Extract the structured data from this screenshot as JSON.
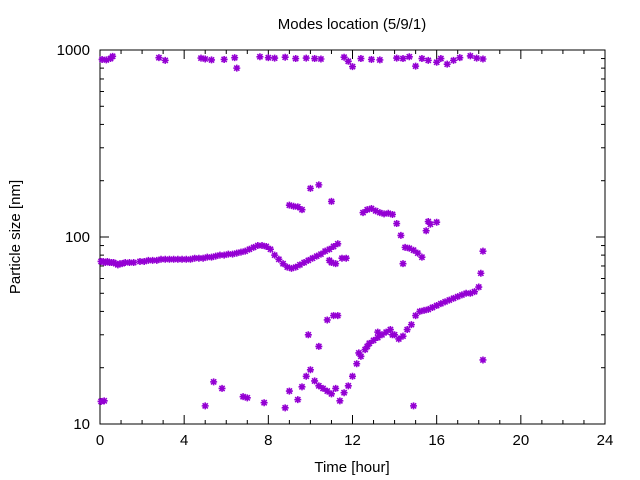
{
  "chart_data": {
    "type": "scatter",
    "title": "Modes location (5/9/1)",
    "xlabel": "Time [hour]",
    "ylabel": "Particle size [nm]",
    "xlim": [
      0,
      24
    ],
    "ylim": [
      10,
      1000
    ],
    "yscale": "log",
    "xticks": [
      0,
      4,
      8,
      12,
      16,
      20,
      24
    ],
    "yticks": [
      10,
      100,
      1000
    ],
    "ytick_labels": [
      "10",
      "100",
      "1000"
    ],
    "grid": false,
    "marker_color": "#9400d3",
    "series": [
      {
        "points": [
          [
            0.05,
            74
          ],
          [
            0.15,
            74
          ],
          [
            0.25,
            73
          ],
          [
            0.35,
            74
          ],
          [
            0.45,
            73
          ],
          [
            0.55,
            73
          ],
          [
            0.65,
            73
          ],
          [
            0.75,
            72
          ],
          [
            0.85,
            71
          ],
          [
            0.95,
            72
          ],
          [
            1.05,
            72
          ],
          [
            1.2,
            73
          ],
          [
            1.4,
            73
          ],
          [
            1.6,
            73
          ],
          [
            1.9,
            74
          ],
          [
            2.1,
            74
          ],
          [
            2.3,
            75
          ],
          [
            2.5,
            75
          ],
          [
            2.7,
            75
          ],
          [
            2.9,
            76
          ],
          [
            3.1,
            76
          ],
          [
            3.3,
            76
          ],
          [
            3.5,
            76
          ],
          [
            3.7,
            76
          ],
          [
            3.9,
            76
          ],
          [
            4.1,
            76
          ],
          [
            4.3,
            76
          ],
          [
            4.5,
            77
          ],
          [
            4.7,
            77
          ],
          [
            4.9,
            77
          ],
          [
            5.1,
            78
          ],
          [
            5.3,
            78
          ],
          [
            5.5,
            79
          ],
          [
            5.7,
            80
          ],
          [
            5.9,
            80
          ],
          [
            6.1,
            81
          ],
          [
            6.3,
            81
          ],
          [
            6.5,
            82
          ],
          [
            6.7,
            83
          ],
          [
            6.9,
            84
          ],
          [
            7.1,
            86
          ],
          [
            7.3,
            88
          ],
          [
            7.5,
            90
          ],
          [
            7.7,
            90
          ],
          [
            7.9,
            89
          ],
          [
            8.1,
            86
          ],
          [
            8.3,
            80
          ],
          [
            8.5,
            76
          ],
          [
            8.7,
            72
          ],
          [
            8.9,
            69
          ],
          [
            9.1,
            68
          ],
          [
            9.3,
            69
          ],
          [
            9.5,
            71
          ],
          [
            9.7,
            73
          ],
          [
            9.9,
            75
          ],
          [
            10.1,
            77
          ],
          [
            10.3,
            79
          ],
          [
            10.5,
            81
          ],
          [
            10.7,
            84
          ],
          [
            10.9,
            86
          ],
          [
            11.1,
            89
          ],
          [
            11.3,
            92
          ],
          [
            11.5,
            77
          ],
          [
            11.7,
            77
          ],
          [
            10.9,
            75
          ],
          [
            11.0,
            73
          ],
          [
            11.2,
            72
          ],
          [
            12.5,
            135
          ],
          [
            12.7,
            140
          ],
          [
            12.9,
            142
          ],
          [
            13.1,
            138
          ],
          [
            13.3,
            135
          ],
          [
            13.5,
            133
          ],
          [
            13.7,
            134
          ],
          [
            13.9,
            132
          ],
          [
            14.1,
            118
          ],
          [
            14.3,
            102
          ],
          [
            14.5,
            88
          ],
          [
            14.7,
            87
          ],
          [
            14.9,
            85
          ],
          [
            15.1,
            82
          ],
          [
            15.3,
            78
          ],
          [
            15.5,
            108
          ],
          [
            15.6,
            121
          ],
          [
            15.7,
            117
          ],
          [
            16.0,
            120
          ],
          [
            14.4,
            72
          ],
          [
            9.0,
            148
          ],
          [
            9.2,
            146
          ],
          [
            9.4,
            145
          ],
          [
            9.6,
            140
          ],
          [
            10.0,
            182
          ],
          [
            10.4,
            190
          ],
          [
            11.0,
            155
          ],
          [
            0.05,
            13.2
          ],
          [
            0.2,
            13.3
          ],
          [
            5.0,
            12.5
          ],
          [
            5.4,
            16.8
          ],
          [
            5.8,
            15.5
          ],
          [
            6.8,
            14
          ],
          [
            7.0,
            13.8
          ],
          [
            7.8,
            13
          ],
          [
            8.8,
            12.2
          ],
          [
            9.0,
            15
          ],
          [
            9.4,
            13.5
          ],
          [
            9.6,
            15.8
          ],
          [
            9.8,
            18
          ],
          [
            10.0,
            19.5
          ],
          [
            10.2,
            17
          ],
          [
            10.4,
            16
          ],
          [
            10.6,
            15.5
          ],
          [
            10.8,
            15
          ],
          [
            11.0,
            14.5
          ],
          [
            11.2,
            15.5
          ],
          [
            11.4,
            13.3
          ],
          [
            11.6,
            14.7
          ],
          [
            11.8,
            16
          ],
          [
            12.0,
            18
          ],
          [
            12.2,
            21
          ],
          [
            12.4,
            23
          ],
          [
            12.6,
            25
          ],
          [
            12.8,
            27
          ],
          [
            13.0,
            28
          ],
          [
            13.2,
            29
          ],
          [
            13.4,
            30
          ],
          [
            13.6,
            31
          ],
          [
            13.8,
            32
          ],
          [
            14.0,
            30
          ],
          [
            14.2,
            28.5
          ],
          [
            14.4,
            29.5
          ],
          [
            14.6,
            32
          ],
          [
            14.8,
            34
          ],
          [
            15.0,
            38
          ],
          [
            15.2,
            40
          ],
          [
            15.4,
            40.5
          ],
          [
            15.6,
            41
          ],
          [
            15.8,
            42
          ],
          [
            16.0,
            43
          ],
          [
            16.2,
            44
          ],
          [
            16.4,
            45
          ],
          [
            16.6,
            46
          ],
          [
            16.8,
            47
          ],
          [
            17.0,
            48
          ],
          [
            17.2,
            49
          ],
          [
            17.4,
            50
          ],
          [
            17.6,
            50
          ],
          [
            17.8,
            51
          ],
          [
            18.0,
            54
          ],
          [
            18.1,
            64
          ],
          [
            18.2,
            84
          ],
          [
            18.2,
            22
          ],
          [
            14.9,
            12.5
          ],
          [
            9.9,
            30
          ],
          [
            10.4,
            26
          ],
          [
            10.8,
            36
          ],
          [
            11.1,
            38
          ],
          [
            11.3,
            38
          ],
          [
            12.3,
            24
          ],
          [
            12.7,
            26
          ],
          [
            13.2,
            31
          ],
          [
            13.9,
            30
          ]
        ]
      },
      {
        "points": [
          [
            0.1,
            890
          ],
          [
            0.3,
            885
          ],
          [
            0.5,
            900
          ],
          [
            0.6,
            925
          ],
          [
            2.8,
            910
          ],
          [
            3.1,
            880
          ],
          [
            4.8,
            905
          ],
          [
            5.0,
            895
          ],
          [
            5.3,
            885
          ],
          [
            5.9,
            890
          ],
          [
            6.4,
            910
          ],
          [
            6.5,
            800
          ],
          [
            7.6,
            920
          ],
          [
            8.0,
            910
          ],
          [
            8.3,
            905
          ],
          [
            8.8,
            915
          ],
          [
            9.3,
            900
          ],
          [
            9.8,
            905
          ],
          [
            10.2,
            900
          ],
          [
            10.5,
            895
          ],
          [
            11.6,
            915
          ],
          [
            11.8,
            870
          ],
          [
            12.0,
            815
          ],
          [
            12.4,
            900
          ],
          [
            12.9,
            890
          ],
          [
            13.3,
            885
          ],
          [
            14.1,
            905
          ],
          [
            14.4,
            900
          ],
          [
            14.7,
            920
          ],
          [
            15.0,
            820
          ],
          [
            15.3,
            900
          ],
          [
            15.6,
            880
          ],
          [
            16.0,
            860
          ],
          [
            16.2,
            900
          ],
          [
            16.5,
            840
          ],
          [
            16.8,
            880
          ],
          [
            17.1,
            910
          ],
          [
            17.6,
            930
          ],
          [
            17.9,
            905
          ],
          [
            18.2,
            895
          ]
        ]
      }
    ]
  }
}
